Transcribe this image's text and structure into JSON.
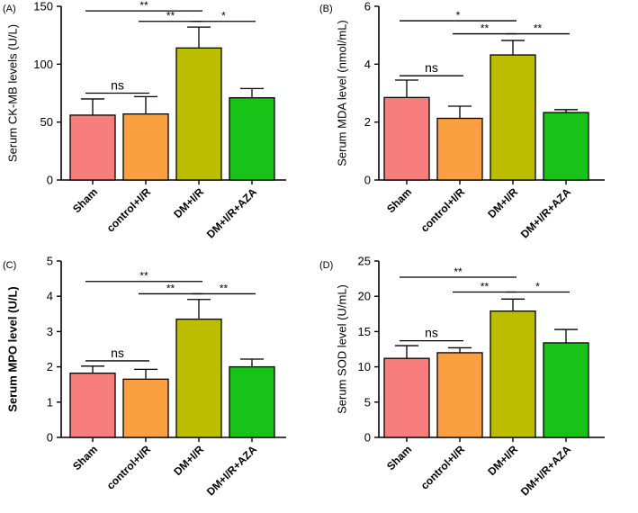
{
  "colors": {
    "sham": "#f87d7d",
    "control": "#fba040",
    "dm": "#bdbd00",
    "aza": "#18c318"
  },
  "chart_data": [
    {
      "type": "bar",
      "panel_label": "(A)",
      "ylabel": "Serum CK-MB  levels (U/L)",
      "ylabel_bold": false,
      "categories": [
        "Sham",
        "control+I/R",
        "DM+I/R",
        "DM+I/R+AZA"
      ],
      "values": [
        56,
        57,
        114,
        71
      ],
      "errors": [
        14,
        15,
        18,
        8
      ],
      "ylim": [
        0,
        150
      ],
      "yticks": [
        0,
        50,
        100,
        150
      ],
      "significance": [
        {
          "from": 0,
          "to": 2,
          "label": "**",
          "y": 146
        },
        {
          "from": 1,
          "to": 2,
          "label": "**",
          "y": 137
        },
        {
          "from": 2,
          "to": 3,
          "label": "*",
          "y": 137
        },
        {
          "from": 0,
          "to": 1,
          "label": "ns",
          "y": 75
        }
      ]
    },
    {
      "type": "bar",
      "panel_label": "(B)",
      "ylabel": "Serum MDA level (nmol/mL)",
      "ylabel_bold": false,
      "categories": [
        "Sham",
        "control+I/R",
        "DM+I/R",
        "DM+I/R+AZA"
      ],
      "values": [
        2.85,
        2.13,
        4.32,
        2.33
      ],
      "errors": [
        0.6,
        0.42,
        0.5,
        0.1
      ],
      "ylim": [
        0,
        6
      ],
      "yticks": [
        0,
        2,
        4,
        6
      ],
      "significance": [
        {
          "from": 0,
          "to": 2,
          "label": "*",
          "y": 5.5
        },
        {
          "from": 1,
          "to": 2,
          "label": "**",
          "y": 5.05
        },
        {
          "from": 2,
          "to": 3,
          "label": "**",
          "y": 5.05
        },
        {
          "from": 0,
          "to": 1,
          "label": "ns",
          "y": 3.6
        }
      ]
    },
    {
      "type": "bar",
      "panel_label": "(C)",
      "ylabel": "Serum MPO level (U/L)",
      "ylabel_bold": true,
      "categories": [
        "Sham",
        "control+I/R",
        "DM+I/R",
        "DM+I/R+AZA"
      ],
      "values": [
        1.82,
        1.65,
        3.35,
        2.0
      ],
      "errors": [
        0.2,
        0.28,
        0.56,
        0.22
      ],
      "ylim": [
        0,
        5
      ],
      "yticks": [
        0,
        1,
        2,
        3,
        4,
        5
      ],
      "significance": [
        {
          "from": 0,
          "to": 2,
          "label": "**",
          "y": 4.42
        },
        {
          "from": 1,
          "to": 2,
          "label": "**",
          "y": 4.07
        },
        {
          "from": 2,
          "to": 3,
          "label": "**",
          "y": 4.07
        },
        {
          "from": 0,
          "to": 1,
          "label": "ns",
          "y": 2.17
        }
      ]
    },
    {
      "type": "bar",
      "panel_label": "(D)",
      "ylabel": "Serum SOD level (U/mL)",
      "ylabel_bold": false,
      "categories": [
        "Sham",
        "control+I/R",
        "DM+I/R",
        "DM+I/R+AZA"
      ],
      "values": [
        11.2,
        12.0,
        17.9,
        13.4
      ],
      "errors": [
        1.8,
        0.7,
        1.7,
        1.9
      ],
      "ylim": [
        0,
        25
      ],
      "yticks": [
        0,
        5,
        10,
        15,
        20,
        25
      ],
      "significance": [
        {
          "from": 0,
          "to": 2,
          "label": "**",
          "y": 22.7
        },
        {
          "from": 1,
          "to": 2,
          "label": "**",
          "y": 20.6
        },
        {
          "from": 2,
          "to": 3,
          "label": "*",
          "y": 20.6
        },
        {
          "from": 0,
          "to": 1,
          "label": "ns",
          "y": 13.7
        }
      ]
    }
  ]
}
